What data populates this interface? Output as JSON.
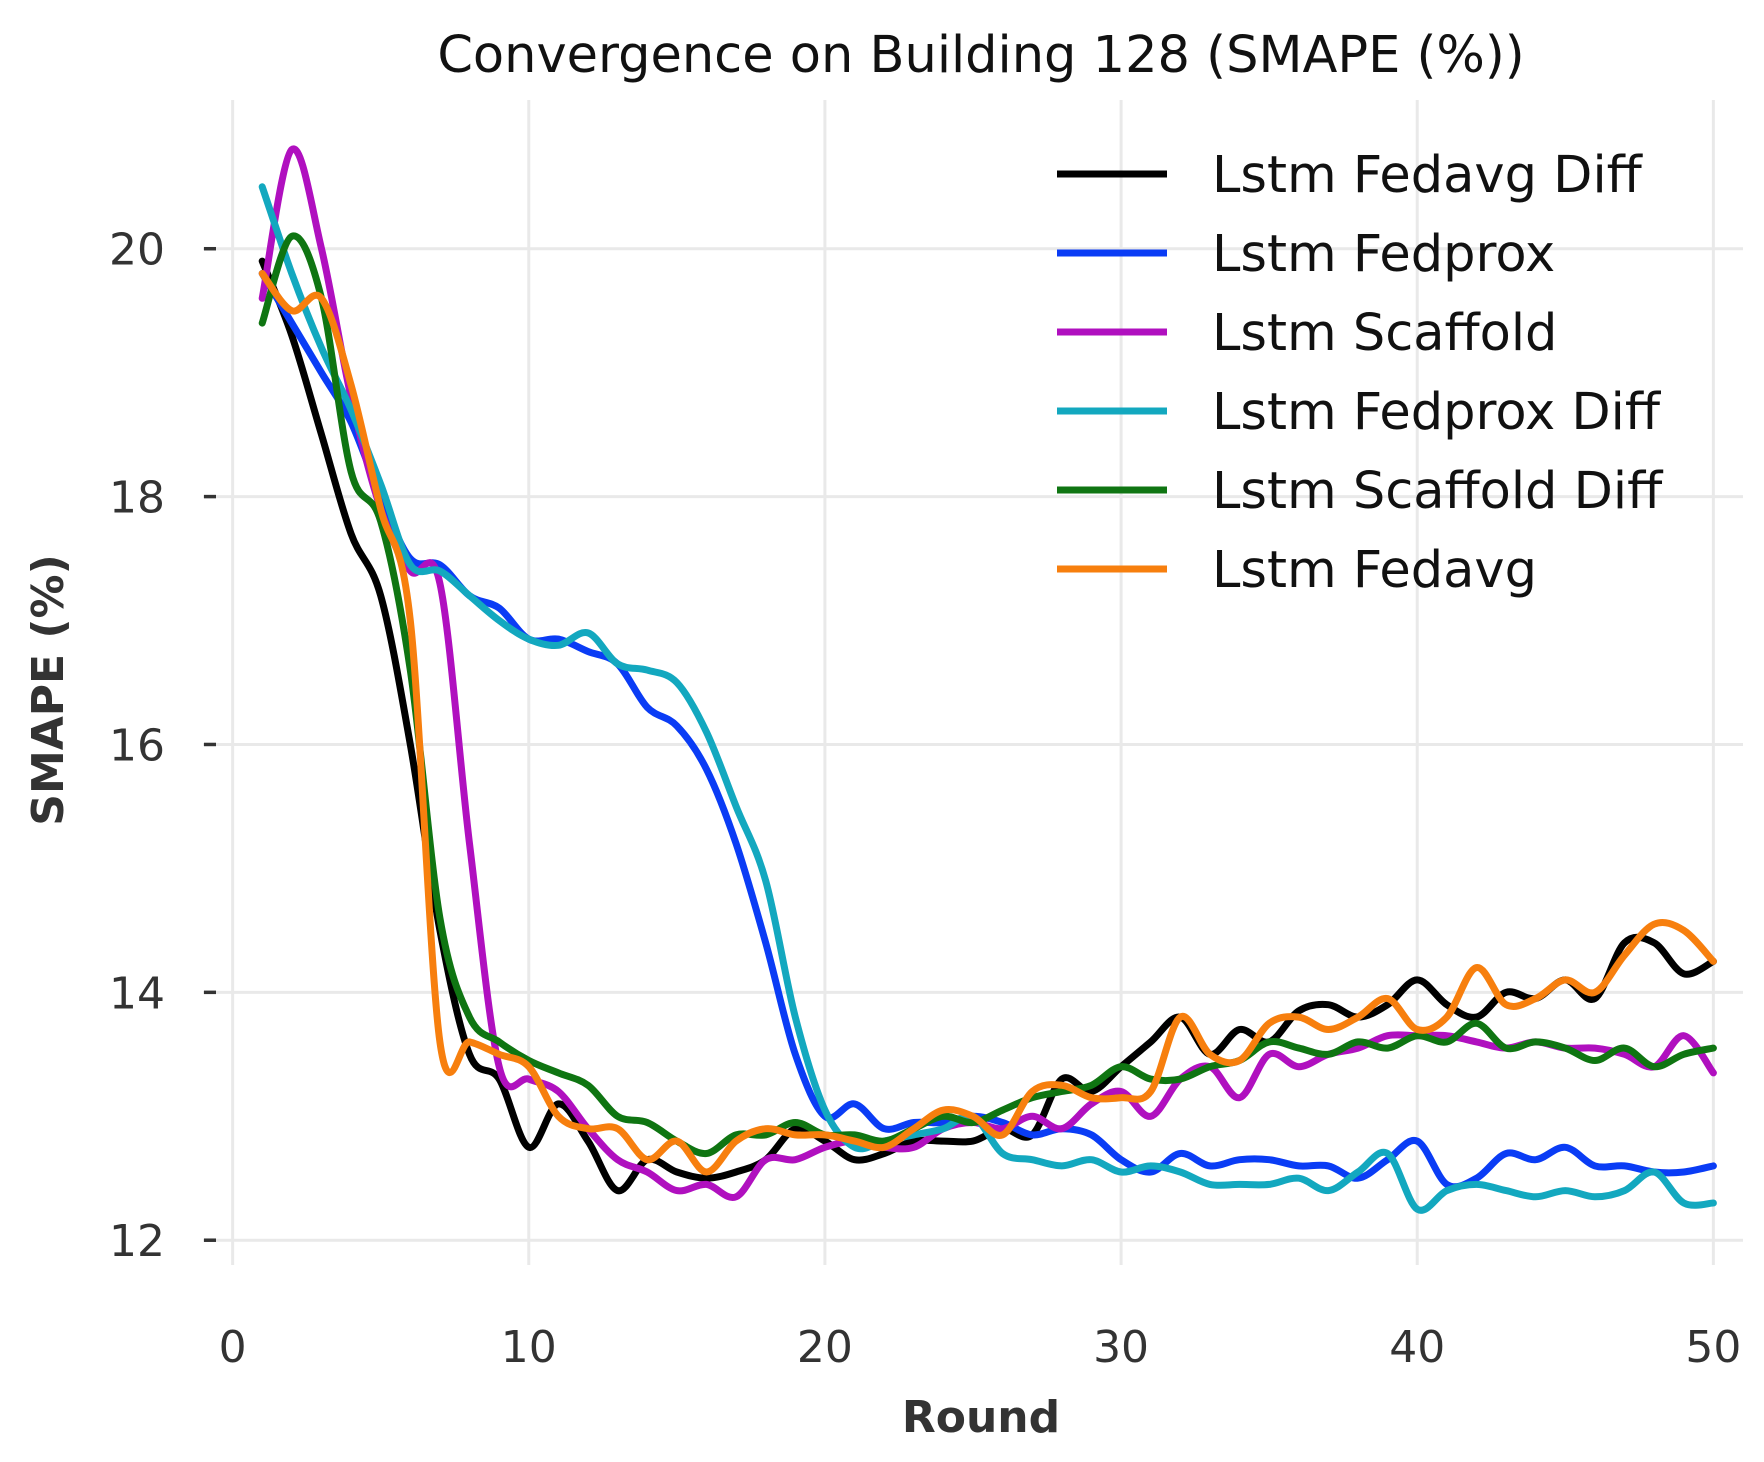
{
  "chart_data": {
    "type": "line",
    "title": "Convergence on Building 128 (SMAPE (%))",
    "xlabel": "Round",
    "ylabel": "SMAPE (%)",
    "xlim": [
      -1,
      51
    ],
    "ylim": [
      11.8,
      21.2
    ],
    "xticks": [
      0,
      10,
      20,
      30,
      40,
      50
    ],
    "yticks": [
      12,
      14,
      16,
      18,
      20
    ],
    "grid": true,
    "legend_position": "top-right",
    "x": [
      1,
      2,
      3,
      4,
      5,
      6,
      7,
      8,
      9,
      10,
      11,
      12,
      13,
      14,
      15,
      16,
      17,
      18,
      19,
      20,
      21,
      22,
      23,
      24,
      25,
      26,
      27,
      28,
      29,
      30,
      31,
      32,
      33,
      34,
      35,
      36,
      37,
      38,
      39,
      40,
      41,
      42,
      43,
      44,
      45,
      46,
      47,
      48,
      49,
      50
    ],
    "series": [
      {
        "name": "Lstm Fedavg Diff",
        "color": "#000000",
        "values": [
          19.9,
          19.3,
          18.5,
          17.7,
          17.2,
          16.0,
          14.5,
          13.5,
          13.3,
          12.75,
          13.1,
          12.8,
          12.4,
          12.65,
          12.55,
          12.5,
          12.55,
          12.65,
          12.9,
          12.8,
          12.65,
          12.7,
          12.8,
          12.8,
          12.8,
          12.9,
          12.85,
          13.3,
          13.2,
          13.4,
          13.6,
          13.8,
          13.5,
          13.7,
          13.6,
          13.85,
          13.9,
          13.8,
          13.9,
          14.1,
          13.9,
          13.8,
          14.0,
          13.95,
          14.1,
          13.95,
          14.4,
          14.4,
          14.15,
          14.25
        ]
      },
      {
        "name": "Lstm Fedprox",
        "color": "#0a3cf5",
        "values": [
          19.8,
          19.4,
          19.0,
          18.6,
          18.0,
          17.5,
          17.45,
          17.2,
          17.1,
          16.85,
          16.85,
          16.75,
          16.65,
          16.3,
          16.15,
          15.8,
          15.2,
          14.4,
          13.5,
          13.0,
          13.1,
          12.9,
          12.95,
          12.95,
          13.0,
          12.95,
          12.85,
          12.9,
          12.85,
          12.65,
          12.55,
          12.7,
          12.6,
          12.65,
          12.65,
          12.6,
          12.6,
          12.5,
          12.65,
          12.8,
          12.45,
          12.5,
          12.7,
          12.65,
          12.75,
          12.6,
          12.6,
          12.55,
          12.55,
          12.6
        ]
      },
      {
        "name": "Lstm Scaffold",
        "color": "#b010bf",
        "values": [
          19.6,
          20.8,
          20.0,
          18.8,
          17.9,
          17.4,
          17.3,
          15.2,
          13.4,
          13.3,
          13.2,
          12.9,
          12.65,
          12.55,
          12.4,
          12.45,
          12.35,
          12.65,
          12.65,
          12.75,
          12.8,
          12.75,
          12.75,
          12.9,
          12.95,
          12.9,
          13.0,
          12.9,
          13.1,
          13.2,
          13.0,
          13.3,
          13.4,
          13.15,
          13.5,
          13.4,
          13.5,
          13.55,
          13.65,
          13.65,
          13.65,
          13.6,
          13.55,
          13.6,
          13.55,
          13.55,
          13.5,
          13.4,
          13.65,
          13.35
        ]
      },
      {
        "name": "Lstm Fedprox Diff",
        "color": "#13a8bf",
        "values": [
          20.5,
          19.8,
          19.2,
          18.7,
          18.1,
          17.45,
          17.4,
          17.2,
          17.0,
          16.85,
          16.8,
          16.9,
          16.65,
          16.6,
          16.5,
          16.1,
          15.5,
          14.9,
          13.8,
          13.05,
          12.75,
          12.8,
          12.85,
          12.9,
          13.0,
          12.7,
          12.65,
          12.6,
          12.65,
          12.55,
          12.6,
          12.55,
          12.45,
          12.45,
          12.45,
          12.5,
          12.4,
          12.55,
          12.7,
          12.25,
          12.4,
          12.45,
          12.4,
          12.35,
          12.4,
          12.35,
          12.4,
          12.55,
          12.3,
          12.3
        ]
      },
      {
        "name": "Lstm Scaffold Diff",
        "color": "#0f7512",
        "values": [
          19.4,
          20.1,
          19.6,
          18.2,
          17.8,
          16.6,
          14.6,
          13.8,
          13.6,
          13.45,
          13.35,
          13.25,
          13.0,
          12.95,
          12.8,
          12.7,
          12.85,
          12.85,
          12.95,
          12.85,
          12.85,
          12.8,
          12.9,
          13.0,
          12.95,
          13.05,
          13.15,
          13.2,
          13.25,
          13.4,
          13.3,
          13.3,
          13.4,
          13.45,
          13.6,
          13.55,
          13.5,
          13.6,
          13.55,
          13.65,
          13.6,
          13.75,
          13.55,
          13.6,
          13.55,
          13.45,
          13.55,
          13.4,
          13.5,
          13.55
        ]
      },
      {
        "name": "Lstm Fedavg",
        "color": "#f77f0e",
        "values": [
          19.8,
          19.5,
          19.6,
          18.9,
          17.9,
          17.0,
          13.6,
          13.6,
          13.5,
          13.4,
          13.0,
          12.9,
          12.9,
          12.65,
          12.8,
          12.55,
          12.8,
          12.9,
          12.85,
          12.85,
          12.8,
          12.75,
          12.9,
          13.05,
          13.0,
          12.85,
          13.2,
          13.25,
          13.15,
          13.15,
          13.2,
          13.8,
          13.5,
          13.45,
          13.75,
          13.8,
          13.7,
          13.8,
          13.95,
          13.7,
          13.8,
          14.2,
          13.9,
          13.95,
          14.1,
          14.0,
          14.3,
          14.55,
          14.5,
          14.25
        ]
      }
    ]
  }
}
